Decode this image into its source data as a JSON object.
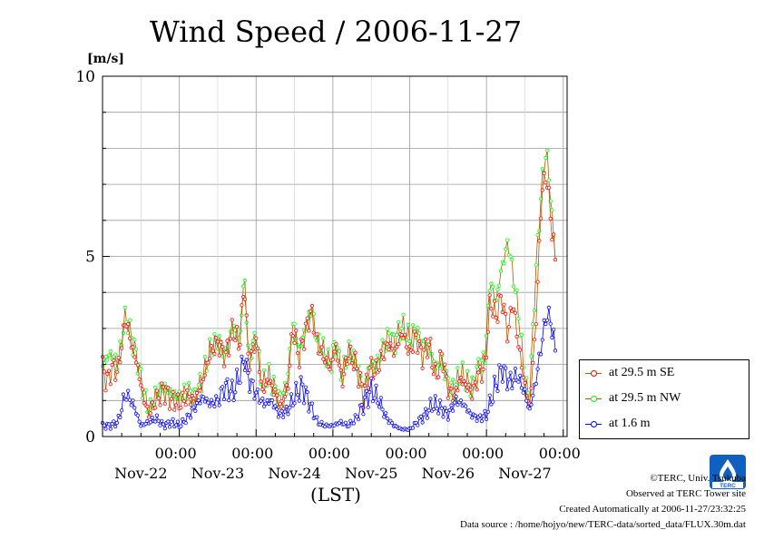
{
  "title": "Wind Speed / 2006-11-27",
  "unit_label": "[m/s]",
  "xaxis_label": "(LST)",
  "credits": {
    "copyright": "©TERC, Univ. Tsukuba",
    "observed": "Observed at TERC Tower site",
    "created": "Created Automatically at 2006-11-27/23:32:25",
    "source": "Data source : /home/hojyo/new/TERC-data/sorted_data/FLUX.30m.dat"
  },
  "logo_text": "TERC",
  "chart_data": {
    "type": "line",
    "title": "Wind Speed / 2006-11-27",
    "ylabel": "[m/s]",
    "xlabel": "(LST)",
    "ylim": [
      0,
      10
    ],
    "yticks": [
      "0",
      "5",
      "10"
    ],
    "xlim_days": [
      0,
      6.05
    ],
    "xtick_time": "00:00",
    "xtick_dates": [
      "Nov-22",
      "Nov-23",
      "Nov-24",
      "Nov-25",
      "Nov-26",
      "Nov-27"
    ],
    "grid": true,
    "legend_position": "right",
    "colors": {
      "se": "#ff0000",
      "nw": "#00ff00",
      "low": "#0000ff",
      "line": "#b05a00"
    },
    "series": [
      {
        "name": "at 29.5 m SE",
        "color": "#ff0000",
        "anchors": [
          [
            0.0,
            1.9
          ],
          [
            0.06,
            1.5
          ],
          [
            0.12,
            1.9
          ],
          [
            0.2,
            1.8
          ],
          [
            0.3,
            3.3
          ],
          [
            0.38,
            2.5
          ],
          [
            0.45,
            2.0
          ],
          [
            0.52,
            1.2
          ],
          [
            0.6,
            0.6
          ],
          [
            0.7,
            1.0
          ],
          [
            0.8,
            1.3
          ],
          [
            0.9,
            1.0
          ],
          [
            1.0,
            0.9
          ],
          [
            1.1,
            1.1
          ],
          [
            1.2,
            1.0
          ],
          [
            1.3,
            1.5
          ],
          [
            1.4,
            2.3
          ],
          [
            1.5,
            2.6
          ],
          [
            1.6,
            2.2
          ],
          [
            1.7,
            3.0
          ],
          [
            1.78,
            2.5
          ],
          [
            1.85,
            4.3
          ],
          [
            1.9,
            2.0
          ],
          [
            2.0,
            2.7
          ],
          [
            2.08,
            1.2
          ],
          [
            2.16,
            1.6
          ],
          [
            2.25,
            1.2
          ],
          [
            2.32,
            0.8
          ],
          [
            2.4,
            1.2
          ],
          [
            2.48,
            3.0
          ],
          [
            2.56,
            2.2
          ],
          [
            2.64,
            2.9
          ],
          [
            2.72,
            3.5
          ],
          [
            2.8,
            2.5
          ],
          [
            2.88,
            2.2
          ],
          [
            2.96,
            1.9
          ],
          [
            3.04,
            2.5
          ],
          [
            3.12,
            1.5
          ],
          [
            3.2,
            2.3
          ],
          [
            3.3,
            2.0
          ],
          [
            3.4,
            1.1
          ],
          [
            3.48,
            1.9
          ],
          [
            3.56,
            1.8
          ],
          [
            3.64,
            2.2
          ],
          [
            3.72,
            2.6
          ],
          [
            3.8,
            2.3
          ],
          [
            3.9,
            2.9
          ],
          [
            4.0,
            2.3
          ],
          [
            4.08,
            2.8
          ],
          [
            4.16,
            2.2
          ],
          [
            4.25,
            2.6
          ],
          [
            4.34,
            1.6
          ],
          [
            4.42,
            2.3
          ],
          [
            4.5,
            1.3
          ],
          [
            4.58,
            1.1
          ],
          [
            4.66,
            1.6
          ],
          [
            4.74,
            1.4
          ],
          [
            4.82,
            1.2
          ],
          [
            4.9,
            1.7
          ],
          [
            4.98,
            1.9
          ],
          [
            5.05,
            3.8
          ],
          [
            5.12,
            3.3
          ],
          [
            5.2,
            3.9
          ],
          [
            5.28,
            2.8
          ],
          [
            5.34,
            3.8
          ],
          [
            5.42,
            2.5
          ],
          [
            5.5,
            1.4
          ],
          [
            5.56,
            0.8
          ],
          [
            5.64,
            3.0
          ],
          [
            5.72,
            6.8
          ],
          [
            5.78,
            7.3
          ],
          [
            5.84,
            6.0
          ],
          [
            5.9,
            4.8
          ]
        ]
      },
      {
        "name": "at 29.5 m NW",
        "color": "#00ff00",
        "anchors": [
          [
            0.0,
            2.0
          ],
          [
            0.06,
            2.2
          ],
          [
            0.12,
            2.3
          ],
          [
            0.2,
            2.0
          ],
          [
            0.3,
            3.4
          ],
          [
            0.38,
            2.7
          ],
          [
            0.45,
            2.2
          ],
          [
            0.52,
            1.4
          ],
          [
            0.6,
            0.7
          ],
          [
            0.7,
            1.2
          ],
          [
            0.8,
            1.4
          ],
          [
            0.9,
            1.2
          ],
          [
            1.0,
            1.1
          ],
          [
            1.1,
            1.3
          ],
          [
            1.2,
            1.1
          ],
          [
            1.3,
            1.6
          ],
          [
            1.4,
            2.4
          ],
          [
            1.5,
            2.7
          ],
          [
            1.6,
            2.3
          ],
          [
            1.7,
            3.1
          ],
          [
            1.78,
            2.6
          ],
          [
            1.85,
            4.5
          ],
          [
            1.9,
            2.2
          ],
          [
            2.0,
            2.8
          ],
          [
            2.08,
            1.4
          ],
          [
            2.16,
            1.7
          ],
          [
            2.25,
            1.3
          ],
          [
            2.32,
            1.0
          ],
          [
            2.4,
            1.4
          ],
          [
            2.48,
            3.2
          ],
          [
            2.56,
            2.4
          ],
          [
            2.64,
            3.0
          ],
          [
            2.72,
            3.6
          ],
          [
            2.8,
            2.6
          ],
          [
            2.88,
            2.4
          ],
          [
            2.96,
            2.0
          ],
          [
            3.04,
            2.6
          ],
          [
            3.12,
            1.7
          ],
          [
            3.2,
            2.4
          ],
          [
            3.3,
            2.1
          ],
          [
            3.4,
            1.3
          ],
          [
            3.48,
            2.0
          ],
          [
            3.56,
            1.9
          ],
          [
            3.64,
            2.4
          ],
          [
            3.72,
            2.8
          ],
          [
            3.8,
            2.6
          ],
          [
            3.9,
            3.1
          ],
          [
            4.0,
            2.7
          ],
          [
            4.08,
            3.0
          ],
          [
            4.16,
            2.6
          ],
          [
            4.25,
            2.5
          ],
          [
            4.34,
            1.9
          ],
          [
            4.42,
            2.1
          ],
          [
            4.5,
            1.5
          ],
          [
            4.58,
            1.3
          ],
          [
            4.66,
            1.8
          ],
          [
            4.74,
            1.5
          ],
          [
            4.82,
            1.4
          ],
          [
            4.9,
            2.0
          ],
          [
            4.98,
            2.2
          ],
          [
            5.05,
            4.4
          ],
          [
            5.12,
            3.7
          ],
          [
            5.2,
            4.7
          ],
          [
            5.28,
            5.4
          ],
          [
            5.34,
            4.6
          ],
          [
            5.42,
            3.4
          ],
          [
            5.5,
            1.5
          ],
          [
            5.56,
            1.0
          ],
          [
            5.64,
            4.5
          ],
          [
            5.72,
            7.0
          ],
          [
            5.78,
            8.0
          ],
          [
            5.84,
            6.5
          ],
          [
            5.9,
            4.9
          ]
        ]
      },
      {
        "name": "at 1.6 m",
        "color": "#0000ff",
        "anchors": [
          [
            0.0,
            0.3
          ],
          [
            0.1,
            0.3
          ],
          [
            0.2,
            0.4
          ],
          [
            0.3,
            1.2
          ],
          [
            0.4,
            0.9
          ],
          [
            0.5,
            0.3
          ],
          [
            0.6,
            0.4
          ],
          [
            0.7,
            0.5
          ],
          [
            0.8,
            0.3
          ],
          [
            0.9,
            0.4
          ],
          [
            1.0,
            0.3
          ],
          [
            1.1,
            0.5
          ],
          [
            1.2,
            0.8
          ],
          [
            1.3,
            1.1
          ],
          [
            1.4,
            0.9
          ],
          [
            1.5,
            1.0
          ],
          [
            1.6,
            1.4
          ],
          [
            1.7,
            1.2
          ],
          [
            1.8,
            1.8
          ],
          [
            1.85,
            2.2
          ],
          [
            1.9,
            1.6
          ],
          [
            2.0,
            1.2
          ],
          [
            2.1,
            0.9
          ],
          [
            2.2,
            1.0
          ],
          [
            2.3,
            0.6
          ],
          [
            2.4,
            0.7
          ],
          [
            2.5,
            1.1
          ],
          [
            2.6,
            1.4
          ],
          [
            2.7,
            0.9
          ],
          [
            2.8,
            0.4
          ],
          [
            2.9,
            0.3
          ],
          [
            3.0,
            0.3
          ],
          [
            3.1,
            0.4
          ],
          [
            3.2,
            0.3
          ],
          [
            3.3,
            0.5
          ],
          [
            3.4,
            0.9
          ],
          [
            3.5,
            1.3
          ],
          [
            3.6,
            1.0
          ],
          [
            3.7,
            0.5
          ],
          [
            3.8,
            0.3
          ],
          [
            3.9,
            0.2
          ],
          [
            4.0,
            0.2
          ],
          [
            4.1,
            0.4
          ],
          [
            4.2,
            0.6
          ],
          [
            4.3,
            0.9
          ],
          [
            4.4,
            0.8
          ],
          [
            4.5,
            0.6
          ],
          [
            4.6,
            1.0
          ],
          [
            4.7,
            0.9
          ],
          [
            4.8,
            0.6
          ],
          [
            4.9,
            0.5
          ],
          [
            5.0,
            0.6
          ],
          [
            5.1,
            1.3
          ],
          [
            5.2,
            1.9
          ],
          [
            5.3,
            1.5
          ],
          [
            5.4,
            1.7
          ],
          [
            5.5,
            1.2
          ],
          [
            5.56,
            0.7
          ],
          [
            5.64,
            1.5
          ],
          [
            5.72,
            2.6
          ],
          [
            5.78,
            3.4
          ],
          [
            5.84,
            3.2
          ],
          [
            5.9,
            2.3
          ]
        ]
      }
    ]
  }
}
